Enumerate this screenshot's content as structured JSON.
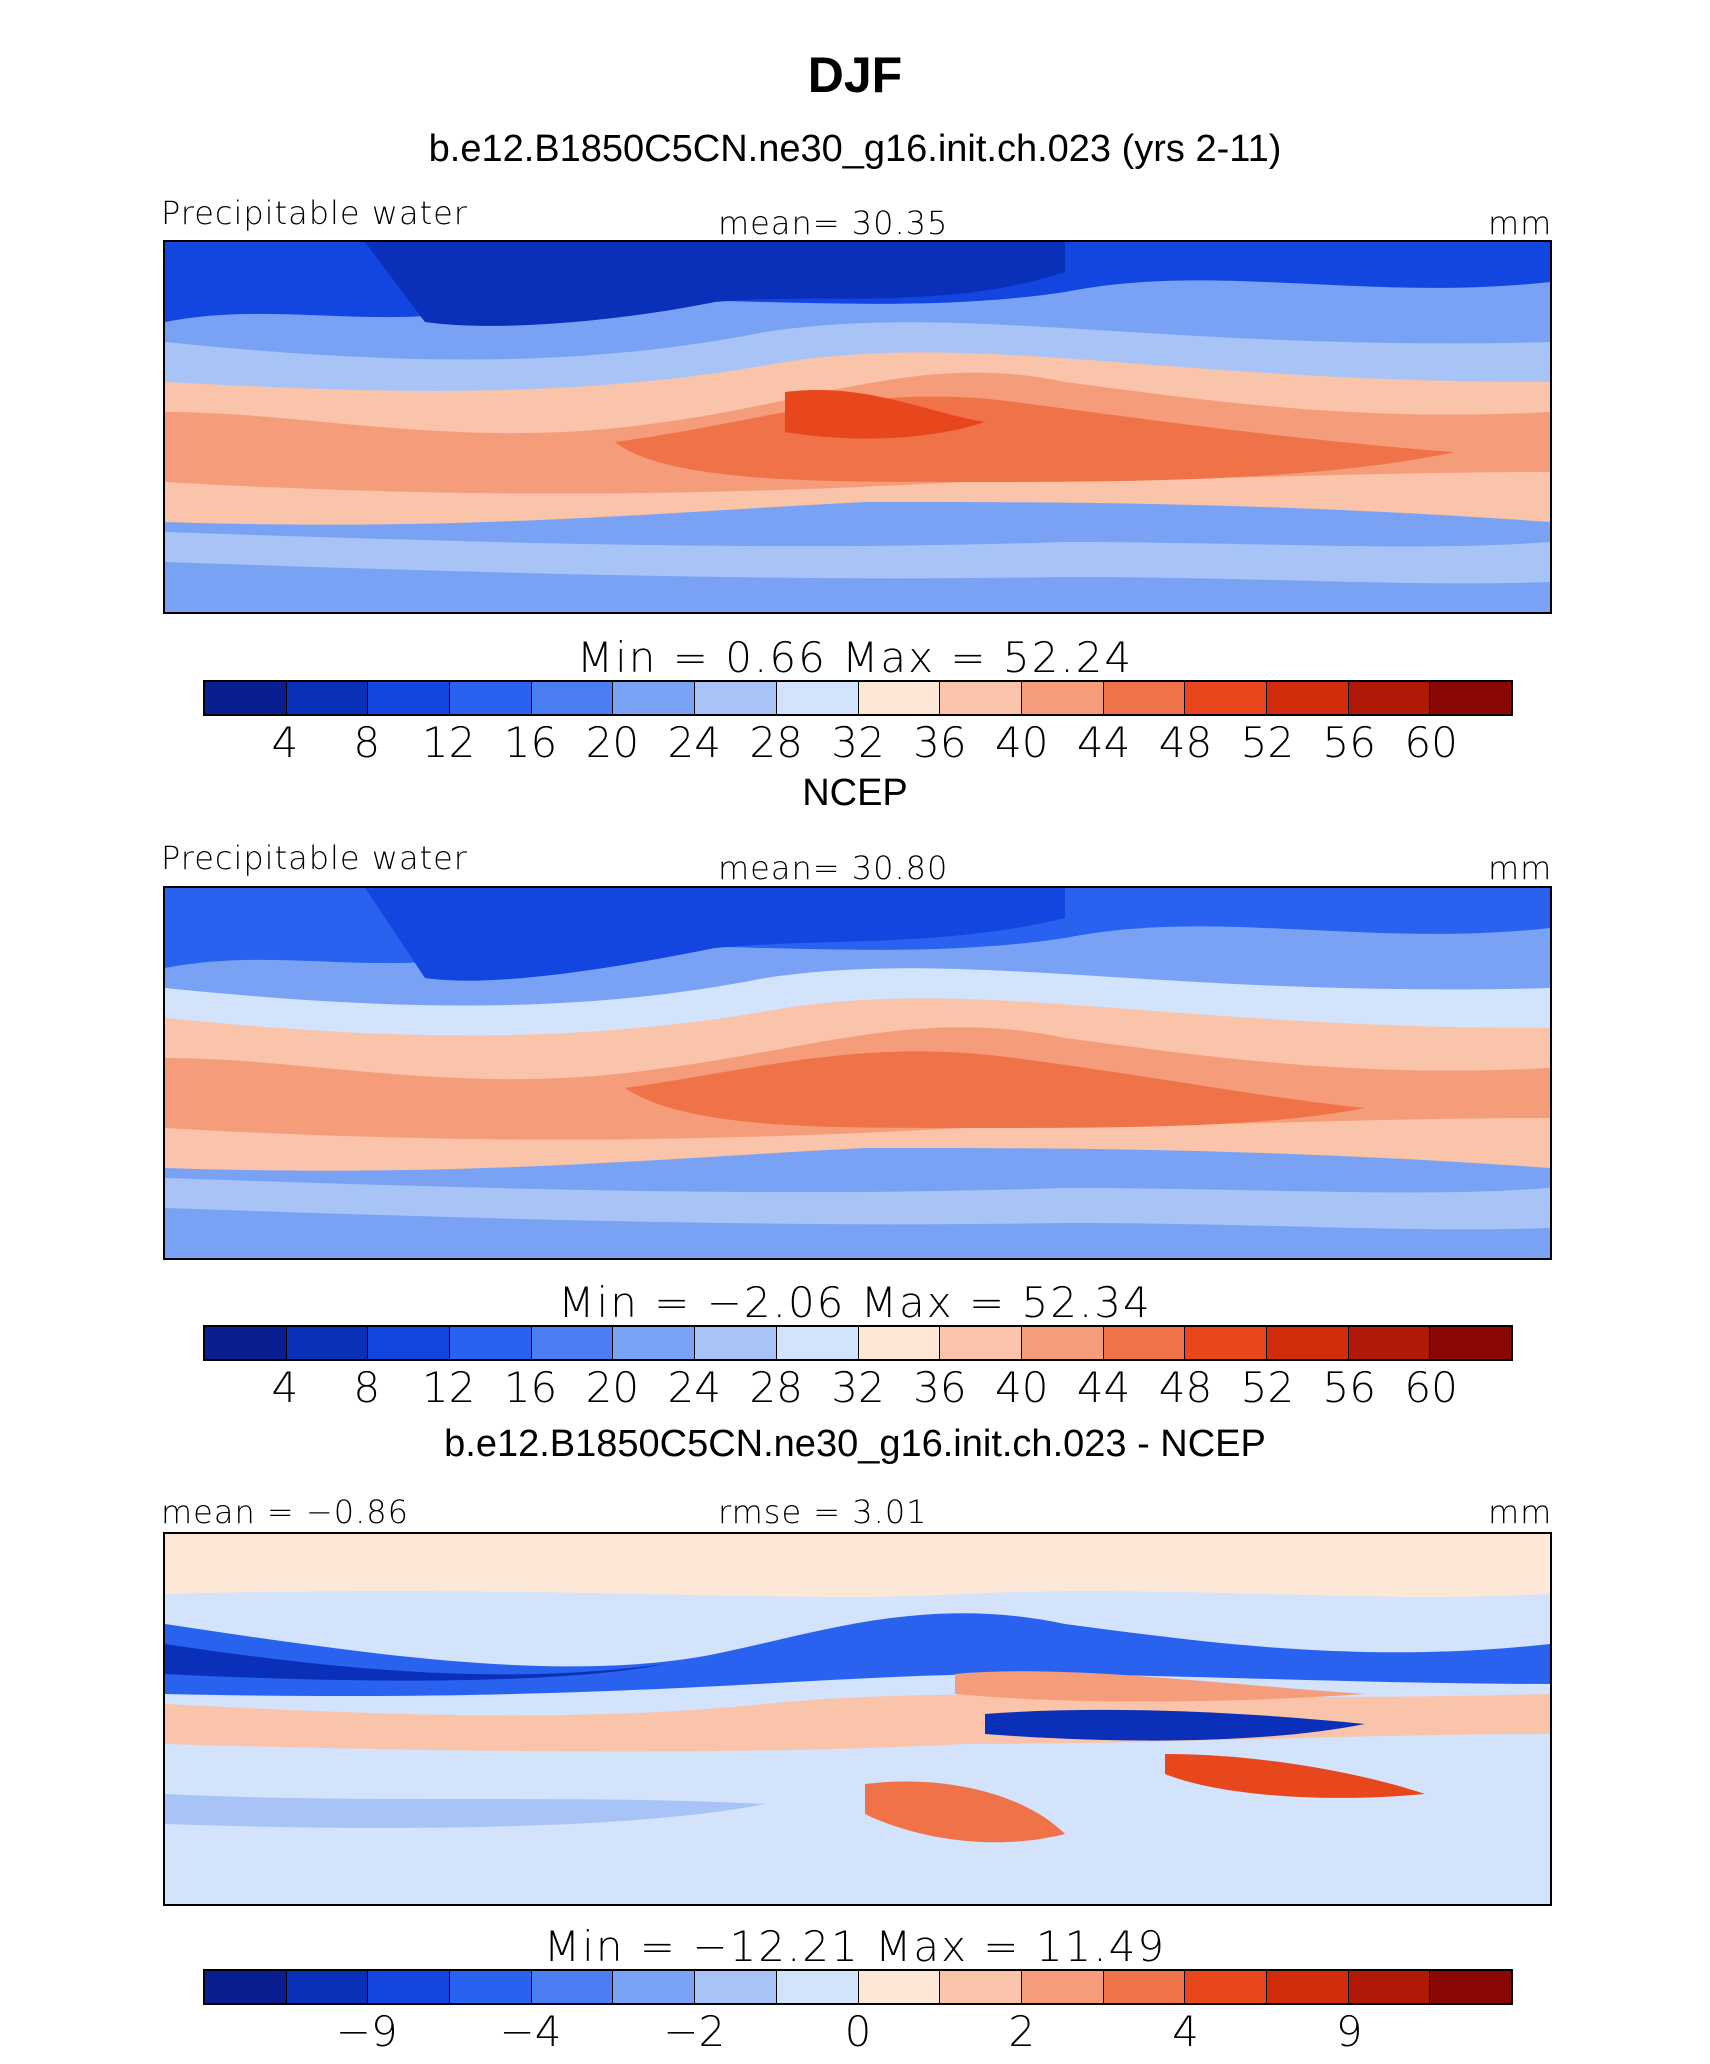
{
  "page_title": "DJF",
  "palette": [
    "#0a1f8f",
    "#0a2fb8",
    "#1346e0",
    "#2a62f0",
    "#4a7ef2",
    "#7aa2f4",
    "#a8c4f7",
    "#d2e3fb",
    "#fde8d8",
    "#f9c4a9",
    "#f59d7a",
    "#ef7248",
    "#e8461c",
    "#d32c0c",
    "#b01906",
    "#8a0803"
  ],
  "diff_palette": [
    "#0a1f8f",
    "#0a2fb8",
    "#1346e0",
    "#2a62f0",
    "#4a7ef2",
    "#7aa2f4",
    "#a8c4f7",
    "#d2e3fb",
    "#fde8d8",
    "#f9c4a9",
    "#f59d7a",
    "#ef7248",
    "#e8461c",
    "#d32c0c",
    "#b01906",
    "#8a0803"
  ],
  "chart_data": [
    {
      "type": "heatmap",
      "title": "b.e12.B1850C5CN.ne30_g16.init.ch.023 (yrs 2-11)",
      "left_label": "Precipitable water",
      "center_label": "mean=   30.35",
      "units": "mm",
      "minmax": "Min =    0.66  Max =   52.24",
      "levels": [
        "4",
        "8",
        "12",
        "16",
        "20",
        "24",
        "28",
        "32",
        "36",
        "40",
        "44",
        "48",
        "52",
        "56",
        "60"
      ],
      "mean": 30.35,
      "min": 0.66,
      "max": 52.24
    },
    {
      "type": "heatmap",
      "title": "NCEP",
      "left_label": "Precipitable water",
      "center_label": "mean=   30.80",
      "units": "mm",
      "minmax": "Min =  −2.06  Max =   52.34",
      "levels": [
        "4",
        "8",
        "12",
        "16",
        "20",
        "24",
        "28",
        "32",
        "36",
        "40",
        "44",
        "48",
        "52",
        "56",
        "60"
      ],
      "mean": 30.8,
      "min": -2.06,
      "max": 52.34
    },
    {
      "type": "heatmap",
      "title": "b.e12.B1850C5CN.ne30_g16.init.ch.023 - NCEP",
      "left_label": "mean =   −0.86",
      "center_label": "rmse =     3.01",
      "units": "mm",
      "minmax": "Min = −12.21  Max =   11.49",
      "levels": [
        "−9",
        "−4",
        "−2",
        "0",
        "2",
        "4",
        "9"
      ],
      "level_positions": [
        2,
        4,
        6,
        8,
        10,
        12,
        14
      ],
      "mean": -0.86,
      "rmse": 3.01,
      "min": -12.21,
      "max": 11.49
    }
  ]
}
